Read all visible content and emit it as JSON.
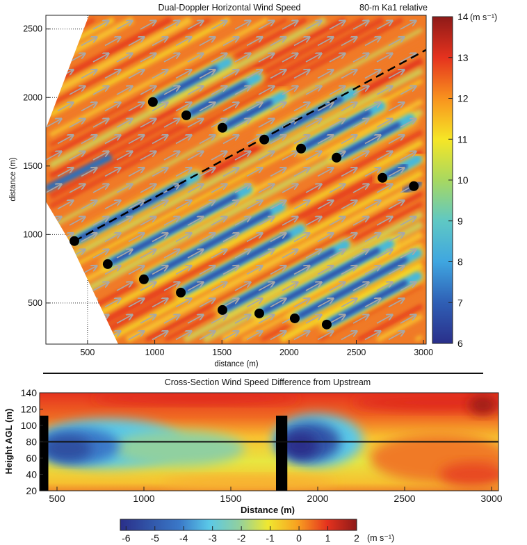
{
  "chart_data": [
    {
      "type": "heatmap",
      "title": "Dual-Doppler Horizontal Wind Speed",
      "subtitle": "80-m Ka1 relative",
      "xlabel": "distance (m)",
      "ylabel": "distance (m)",
      "xlim": [
        190,
        3020
      ],
      "ylim": [
        200,
        2600
      ],
      "xticks": [
        "500",
        "1000",
        "1500",
        "2000",
        "2500",
        "3000"
      ],
      "yticks": [
        "500",
        "1000",
        "1500",
        "2000",
        "2500"
      ],
      "colorbar": {
        "range": [
          6,
          14
        ],
        "ticks": [
          "6",
          "7",
          "8",
          "9",
          "10",
          "11",
          "12",
          "13",
          "14"
        ],
        "unit": "(m s⁻¹)",
        "colors": [
          "#2a2f8a",
          "#2f5fb5",
          "#3fa6e0",
          "#5fc8c4",
          "#a8d860",
          "#f6e626",
          "#f8921e",
          "#e5321e",
          "#8e1a18"
        ]
      },
      "background_speed": 12,
      "turbines": [
        {
          "x": 986,
          "y": 1967
        },
        {
          "x": 1235,
          "y": 1870
        },
        {
          "x": 1504,
          "y": 1779
        },
        {
          "x": 1815,
          "y": 1693
        },
        {
          "x": 2089,
          "y": 1627
        },
        {
          "x": 2353,
          "y": 1561
        },
        {
          "x": 2695,
          "y": 1414
        },
        {
          "x": 2928,
          "y": 1353
        },
        {
          "x": 402,
          "y": 952
        },
        {
          "x": 650,
          "y": 784
        },
        {
          "x": 919,
          "y": 673
        },
        {
          "x": 1194,
          "y": 576
        },
        {
          "x": 1504,
          "y": 449
        },
        {
          "x": 1778,
          "y": 424
        },
        {
          "x": 2042,
          "y": 388
        },
        {
          "x": 2280,
          "y": 343
        }
      ],
      "cross_section_line": {
        "start": {
          "x": 402,
          "y": 952
        },
        "end": {
          "x": 3020,
          "y": 2348
        }
      },
      "wind_direction": "from southwest",
      "grid": "dotted at labelled ticks"
    },
    {
      "type": "heatmap",
      "title": "Cross-Section Wind Speed Difference from Upstream",
      "xlabel": "Distance (m)",
      "ylabel": "Height AGL (m)",
      "xlim": [
        400,
        3040
      ],
      "ylim": [
        20,
        140
      ],
      "xticks": [
        "500",
        "1000",
        "1500",
        "2000",
        "2500",
        "3000"
      ],
      "yticks": [
        "20",
        "40",
        "60",
        "80",
        "100",
        "120",
        "140"
      ],
      "colorbar": {
        "range": [
          -6.2,
          2
        ],
        "ticks": [
          "-6",
          "-5",
          "-4",
          "-3",
          "-2",
          "-1",
          "0",
          "1",
          "2"
        ],
        "unit": "(m s⁻¹)",
        "colors": [
          "#2a2f8a",
          "#3155a8",
          "#3a78c8",
          "#5ac8e8",
          "#90d0a0",
          "#f0e830",
          "#f8a020",
          "#e5321e",
          "#8e1a18"
        ]
      },
      "hub_height_m": 80,
      "turbine_towers": [
        {
          "x_start": 400,
          "x_end": 450,
          "top_m": 112
        },
        {
          "x_start": 1760,
          "x_end": 1825,
          "top_m": 112
        }
      ]
    }
  ]
}
